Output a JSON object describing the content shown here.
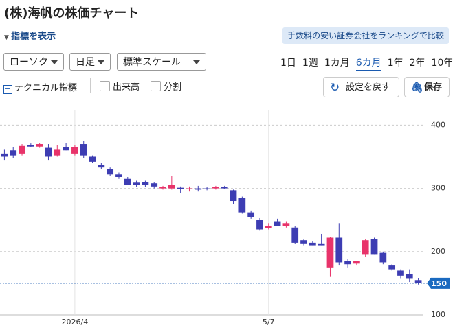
{
  "header": {
    "title": "(株)海帆の株価チャート",
    "toggle": "指標を表示",
    "banner": "手数料の安い証券会社をランキングで比較"
  },
  "controls": {
    "selects": [
      "ローソク",
      "日足",
      "標準スケール"
    ],
    "periods": [
      "1日",
      "1週",
      "1カ月",
      "6カ月",
      "1年",
      "2年",
      "10年"
    ],
    "selected_period": 3,
    "technical": "テクニカル指標",
    "checkboxes": [
      "出来高",
      "分割"
    ],
    "reset": "設定を戻す",
    "save": "保存"
  },
  "chart_data": {
    "type": "candlestick",
    "categories": [
      null,
      null,
      null,
      null,
      null,
      null,
      null,
      null,
      "2026/4",
      null,
      null,
      null,
      null,
      null,
      null,
      null,
      null,
      null,
      null,
      null,
      null,
      null,
      null,
      null,
      null,
      null,
      null,
      null,
      null,
      null,
      "5/7",
      null,
      null,
      null,
      null,
      null,
      null,
      null,
      null,
      null,
      null,
      null,
      null,
      null,
      null,
      null,
      null,
      null
    ],
    "open": [
      355,
      360,
      355,
      368,
      366,
      364,
      352,
      365,
      355,
      370,
      350,
      337,
      330,
      322,
      315,
      309,
      310,
      308,
      300,
      300,
      301,
      300,
      300,
      300,
      300,
      302,
      297,
      285,
      262,
      250,
      237,
      248,
      240,
      238,
      218,
      214,
      213,
      175,
      222,
      185,
      181,
      195,
      220,
      198,
      178,
      170,
      165,
      155
    ],
    "high": [
      362,
      365,
      370,
      371,
      372,
      370,
      368,
      372,
      368,
      375,
      352,
      340,
      333,
      325,
      318,
      312,
      312,
      310,
      304,
      320,
      303,
      303,
      304,
      302,
      304,
      304,
      298,
      287,
      265,
      253,
      245,
      252,
      248,
      240,
      220,
      216,
      228,
      223,
      245,
      188,
      185,
      220,
      222,
      200,
      180,
      172,
      172,
      158
    ],
    "low": [
      345,
      348,
      352,
      365,
      364,
      345,
      350,
      360,
      352,
      348,
      340,
      330,
      320,
      315,
      305,
      302,
      302,
      300,
      298,
      298,
      292,
      295,
      295,
      297,
      298,
      299,
      275,
      260,
      252,
      233,
      235,
      240,
      238,
      212,
      210,
      210,
      210,
      160,
      178,
      175,
      178,
      192,
      195,
      180,
      170,
      157,
      152,
      148
    ],
    "close": [
      350,
      352,
      367,
      366,
      370,
      350,
      362,
      360,
      365,
      352,
      342,
      333,
      322,
      318,
      306,
      305,
      305,
      303,
      302,
      306,
      299,
      300,
      298,
      299,
      302,
      300,
      280,
      262,
      255,
      235,
      241,
      240,
      245,
      214,
      213,
      210,
      210,
      222,
      183,
      180,
      185,
      218,
      195,
      183,
      172,
      162,
      157,
      150
    ],
    "up_color": "#e8336a",
    "down_color": "#3d3db3",
    "ylim": [
      100,
      408
    ],
    "yticks": [
      100,
      200,
      300,
      400
    ],
    "grid": true,
    "last_price": 150
  }
}
